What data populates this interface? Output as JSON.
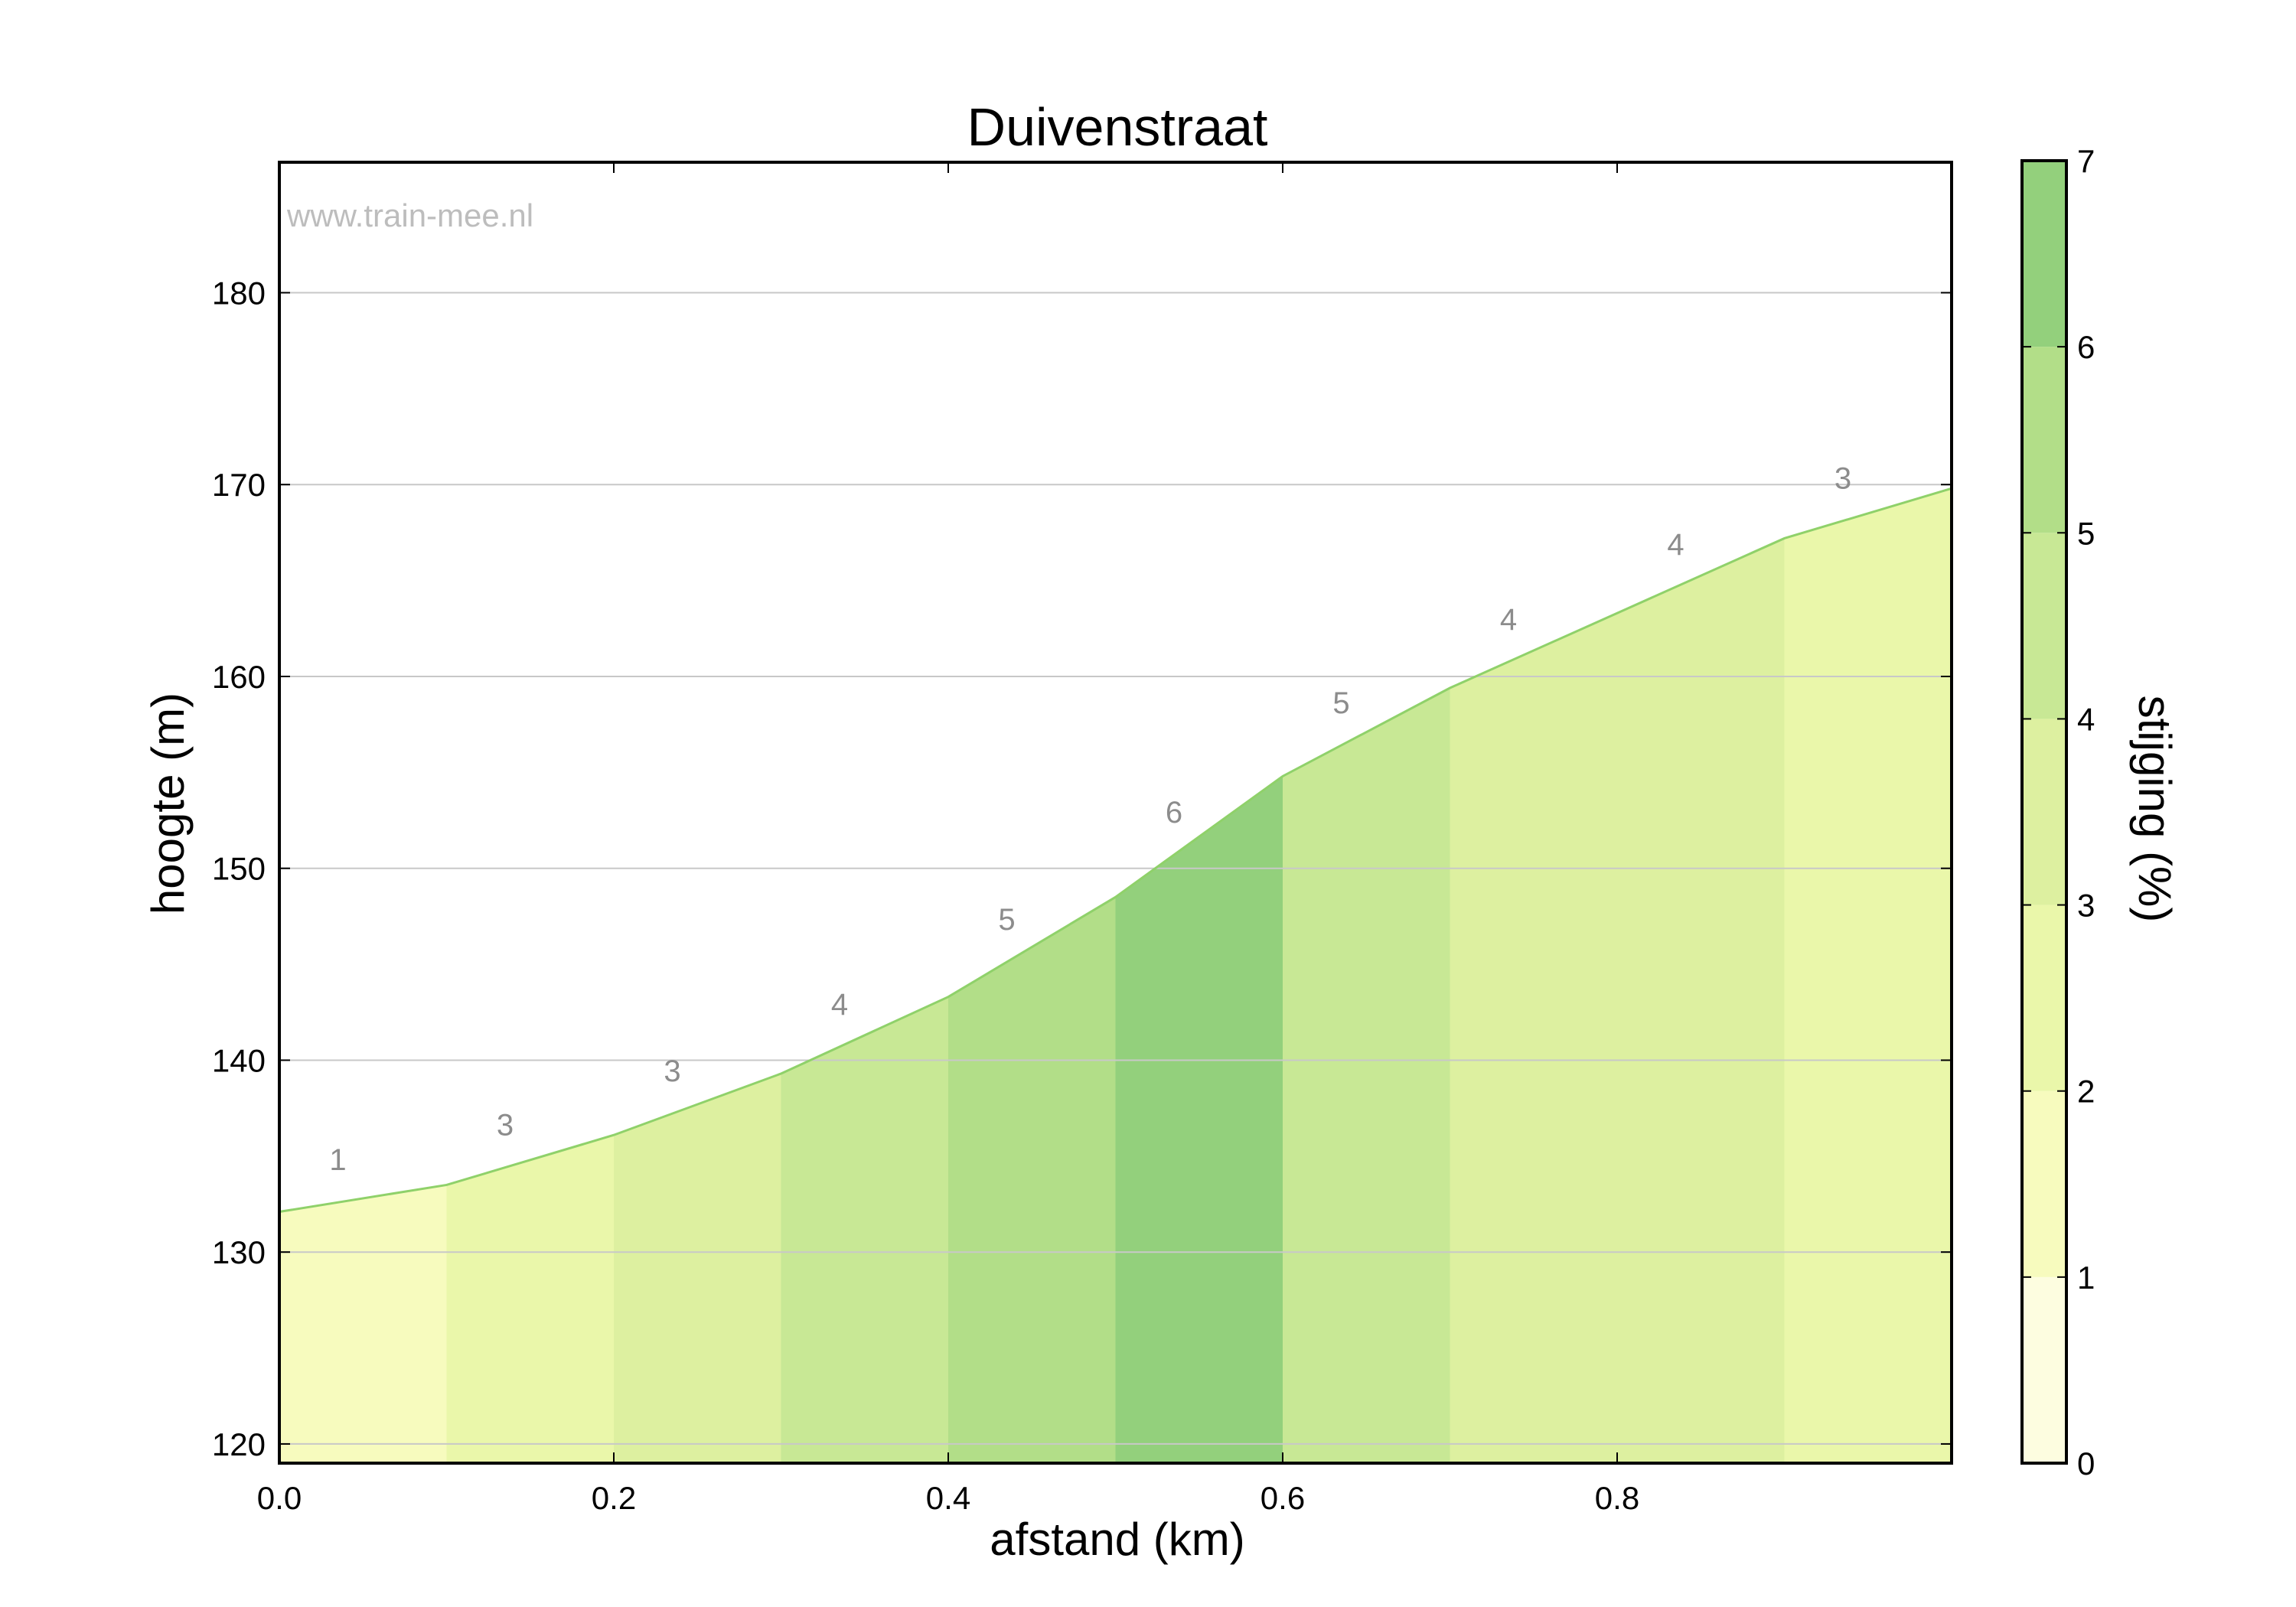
{
  "chart_data": {
    "type": "area",
    "title": "Duivenstraat",
    "xlabel": "afstand (km)",
    "ylabel": "hoogte (m)",
    "watermark": "www.train-mee.nl",
    "xlim": [
      0.0,
      1.0
    ],
    "ylim": [
      119,
      186.8
    ],
    "x_ticks": [
      0.0,
      0.2,
      0.4,
      0.6,
      0.8
    ],
    "x_tick_labels": [
      "0.0",
      "0.2",
      "0.4",
      "0.6",
      "0.8"
    ],
    "y_ticks": [
      120,
      130,
      140,
      150,
      160,
      170,
      180
    ],
    "y_tick_labels": [
      "120",
      "130",
      "140",
      "150",
      "160",
      "170",
      "180"
    ],
    "grid": true,
    "elevation_profile": {
      "x": [
        0.0,
        0.1,
        0.2,
        0.3,
        0.4,
        0.5,
        0.6,
        0.7,
        0.8,
        0.9,
        1.0
      ],
      "y": [
        132.1,
        133.5,
        136.1,
        139.3,
        143.3,
        148.5,
        154.8,
        159.4,
        163.3,
        167.2,
        169.8
      ]
    },
    "segments": [
      {
        "x_start": 0.0,
        "x_end": 0.1,
        "label": "1",
        "gradient": 1.4
      },
      {
        "x_start": 0.1,
        "x_end": 0.2,
        "label": "3",
        "gradient": 2.6
      },
      {
        "x_start": 0.2,
        "x_end": 0.3,
        "label": "3",
        "gradient": 3.2
      },
      {
        "x_start": 0.3,
        "x_end": 0.4,
        "label": "4",
        "gradient": 4.0
      },
      {
        "x_start": 0.4,
        "x_end": 0.5,
        "label": "5",
        "gradient": 5.2
      },
      {
        "x_start": 0.5,
        "x_end": 0.6,
        "label": "6",
        "gradient": 6.3
      },
      {
        "x_start": 0.6,
        "x_end": 0.7,
        "label": "5",
        "gradient": 4.6
      },
      {
        "x_start": 0.7,
        "x_end": 0.8,
        "label": "4",
        "gradient": 3.9
      },
      {
        "x_start": 0.8,
        "x_end": 0.9,
        "label": "4",
        "gradient": 3.9
      },
      {
        "x_start": 0.9,
        "x_end": 1.0,
        "label": "3",
        "gradient": 2.6
      }
    ],
    "colorbar": {
      "label": "stijging (%)",
      "range": [
        0,
        7
      ],
      "ticks": [
        0,
        1,
        2,
        3,
        4,
        5,
        6,
        7
      ],
      "tick_labels": [
        "0",
        "1",
        "2",
        "3",
        "4",
        "5",
        "6",
        "7"
      ],
      "bands": [
        {
          "from": 0,
          "to": 1,
          "color": "#fdfde0"
        },
        {
          "from": 1,
          "to": 2,
          "color": "#f7fbbe"
        },
        {
          "from": 2,
          "to": 3,
          "color": "#eaf7aa"
        },
        {
          "from": 3,
          "to": 4,
          "color": "#ddf0a0"
        },
        {
          "from": 4,
          "to": 5,
          "color": "#c8e895"
        },
        {
          "from": 5,
          "to": 6,
          "color": "#b2de88"
        },
        {
          "from": 6,
          "to": 7,
          "color": "#93d07c"
        }
      ]
    },
    "line_color": "#8fd16a"
  }
}
